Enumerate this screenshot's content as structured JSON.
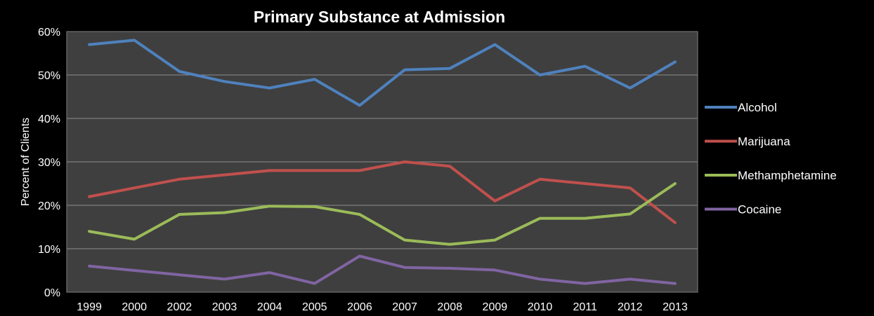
{
  "chart_data": {
    "type": "line",
    "title": "Primary Substance at Admission",
    "xlabel": "",
    "ylabel": "Percent of Clients",
    "categories": [
      "1999",
      "2000",
      "2002",
      "2003",
      "2004",
      "2005",
      "2006",
      "2007",
      "2008",
      "2009",
      "2010",
      "2011",
      "2012",
      "2013"
    ],
    "ylim": [
      0,
      60
    ],
    "yticks": [
      "0%",
      "10%",
      "20%",
      "30%",
      "40%",
      "50%",
      "60%"
    ],
    "grid": true,
    "legend_position": "right",
    "series": [
      {
        "name": "Alcohol",
        "color": "#4F81BD",
        "values": [
          57,
          58,
          50.8,
          48.5,
          47,
          49,
          43,
          51.2,
          51.5,
          57,
          50,
          52,
          47,
          53
        ]
      },
      {
        "name": "Marijuana",
        "color": "#C0504D",
        "values": [
          22,
          24,
          26,
          27,
          28,
          28,
          28,
          30,
          29,
          21,
          26,
          25,
          24,
          16
        ]
      },
      {
        "name": "Methamphetamine",
        "color": "#9BBB59",
        "values": [
          14,
          12.2,
          17.9,
          18.3,
          19.8,
          19.7,
          17.9,
          12,
          11,
          12,
          17,
          17,
          18,
          25
        ]
      },
      {
        "name": "Cocaine",
        "color": "#8064A2",
        "values": [
          6,
          5,
          4,
          3,
          4.5,
          2,
          8.3,
          5.7,
          5.5,
          5.1,
          3,
          2,
          3,
          2
        ]
      }
    ]
  }
}
